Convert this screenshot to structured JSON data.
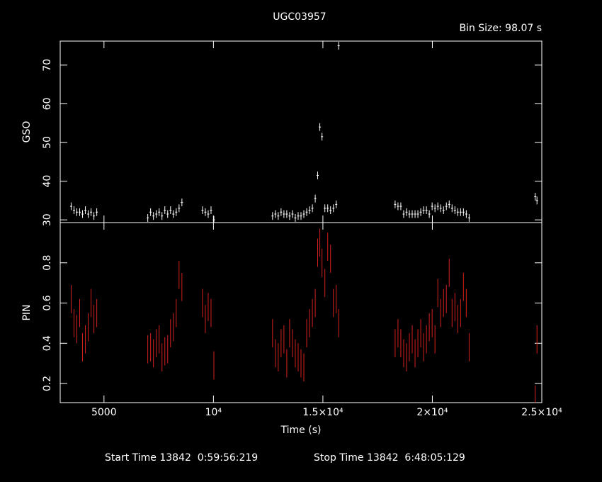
{
  "chart_data": [
    {
      "type": "errorbar",
      "title": "UGC03957",
      "subtitle": "Bin Size: 98.07 s",
      "ylabel": "GSO",
      "color": "#ffffff",
      "x": [
        3500,
        3630,
        3760,
        3890,
        4020,
        4150,
        4280,
        4410,
        4540,
        4670,
        7000,
        7130,
        7260,
        7390,
        7520,
        7650,
        7780,
        7910,
        8040,
        8170,
        8300,
        8430,
        8560,
        9500,
        9630,
        9760,
        9890,
        10020,
        12700,
        12830,
        12960,
        13090,
        13220,
        13350,
        13480,
        13610,
        13740,
        13870,
        14000,
        14130,
        14260,
        14390,
        14520,
        14650,
        14760,
        14860,
        14960,
        15090,
        15220,
        15350,
        15480,
        15610,
        15720,
        18300,
        18430,
        18560,
        18690,
        18820,
        18950,
        19080,
        19210,
        19340,
        19470,
        19600,
        19730,
        19860,
        19990,
        20120,
        20250,
        20380,
        20510,
        20640,
        20770,
        20900,
        21030,
        21160,
        21290,
        21420,
        21550,
        21680,
        24700,
        24780
      ],
      "values": [
        33.5,
        32.5,
        32,
        32,
        31.5,
        32.5,
        31.5,
        32,
        31,
        32,
        30.5,
        32,
        31,
        31.5,
        32,
        31,
        32.5,
        31.5,
        32.5,
        31.5,
        32,
        33,
        34.5,
        32.5,
        32,
        31.5,
        32.5,
        30,
        31,
        31.5,
        31,
        32,
        31.5,
        31.5,
        31,
        31.5,
        30.5,
        31,
        31,
        31.5,
        32,
        32.5,
        33,
        35.5,
        41.5,
        54,
        51.5,
        33,
        33,
        32.5,
        33,
        34,
        75,
        34,
        33.5,
        33.5,
        31.5,
        32,
        31.5,
        31.5,
        31.5,
        31.5,
        32,
        32.5,
        32.5,
        31.5,
        33.5,
        33,
        33.5,
        33,
        32.5,
        33.5,
        34,
        33,
        32.5,
        32,
        32,
        32,
        31.5,
        30.5,
        36,
        35
      ],
      "yerr": 1,
      "xerr": 49,
      "xlim": [
        3000,
        25000
      ],
      "ylim": [
        29.3,
        76.2
      ],
      "yticks": [
        30,
        40,
        50,
        60,
        70
      ]
    },
    {
      "type": "errorbar",
      "ylabel": "PIN",
      "xlabel": "Time (s)",
      "color": "#d42020",
      "x": [
        3500,
        3630,
        3760,
        3890,
        4020,
        4150,
        4280,
        4410,
        4540,
        4670,
        7000,
        7130,
        7260,
        7390,
        7520,
        7650,
        7780,
        7910,
        8040,
        8170,
        8300,
        8430,
        8560,
        9500,
        9630,
        9760,
        9890,
        10020,
        12700,
        12830,
        12960,
        13090,
        13220,
        13350,
        13480,
        13610,
        13740,
        13870,
        14000,
        14130,
        14260,
        14390,
        14520,
        14650,
        14760,
        14860,
        14960,
        15090,
        15220,
        15350,
        15480,
        15610,
        15720,
        18300,
        18430,
        18560,
        18690,
        18820,
        18950,
        19080,
        19210,
        19340,
        19470,
        19600,
        19730,
        19860,
        19990,
        20120,
        20250,
        20380,
        20510,
        20640,
        20770,
        20900,
        21030,
        21160,
        21290,
        21420,
        21550,
        21680,
        24700,
        24780
      ],
      "values": [
        0.62,
        0.5,
        0.47,
        0.55,
        0.38,
        0.42,
        0.48,
        0.6,
        0.52,
        0.55,
        0.37,
        0.38,
        0.35,
        0.4,
        0.42,
        0.33,
        0.36,
        0.37,
        0.45,
        0.48,
        0.55,
        0.74,
        0.68,
        0.6,
        0.52,
        0.58,
        0.55,
        0.29,
        0.45,
        0.35,
        0.33,
        0.4,
        0.42,
        0.3,
        0.45,
        0.4,
        0.35,
        0.33,
        0.3,
        0.28,
        0.45,
        0.5,
        0.55,
        0.6,
        0.85,
        0.9,
        0.8,
        0.7,
        0.88,
        0.82,
        0.6,
        0.62,
        0.5,
        0.4,
        0.45,
        0.4,
        0.35,
        0.33,
        0.38,
        0.42,
        0.35,
        0.4,
        0.45,
        0.38,
        0.42,
        0.48,
        0.5,
        0.42,
        0.65,
        0.55,
        0.6,
        0.62,
        0.75,
        0.55,
        0.58,
        0.52,
        0.55,
        0.68,
        0.6,
        0.38,
        0.12,
        0.42
      ],
      "yerr": 0.07,
      "xlim": [
        3000,
        25000
      ],
      "ylim": [
        0.105,
        1.0
      ],
      "yticks": [
        0.2,
        0.4,
        0.6,
        0.8
      ],
      "xticks": [
        5000,
        {
          "value": 10000,
          "label": "10⁴"
        },
        {
          "value": 15000,
          "label": "1.5×10⁴"
        },
        {
          "value": 20000,
          "label": "2×10⁴"
        },
        {
          "value": 25000,
          "label": "2.5×10⁴"
        }
      ]
    }
  ],
  "footer": {
    "start": "Start Time 13842  0:59:56:219",
    "stop": "Stop Time 13842  6:48:05:129"
  }
}
